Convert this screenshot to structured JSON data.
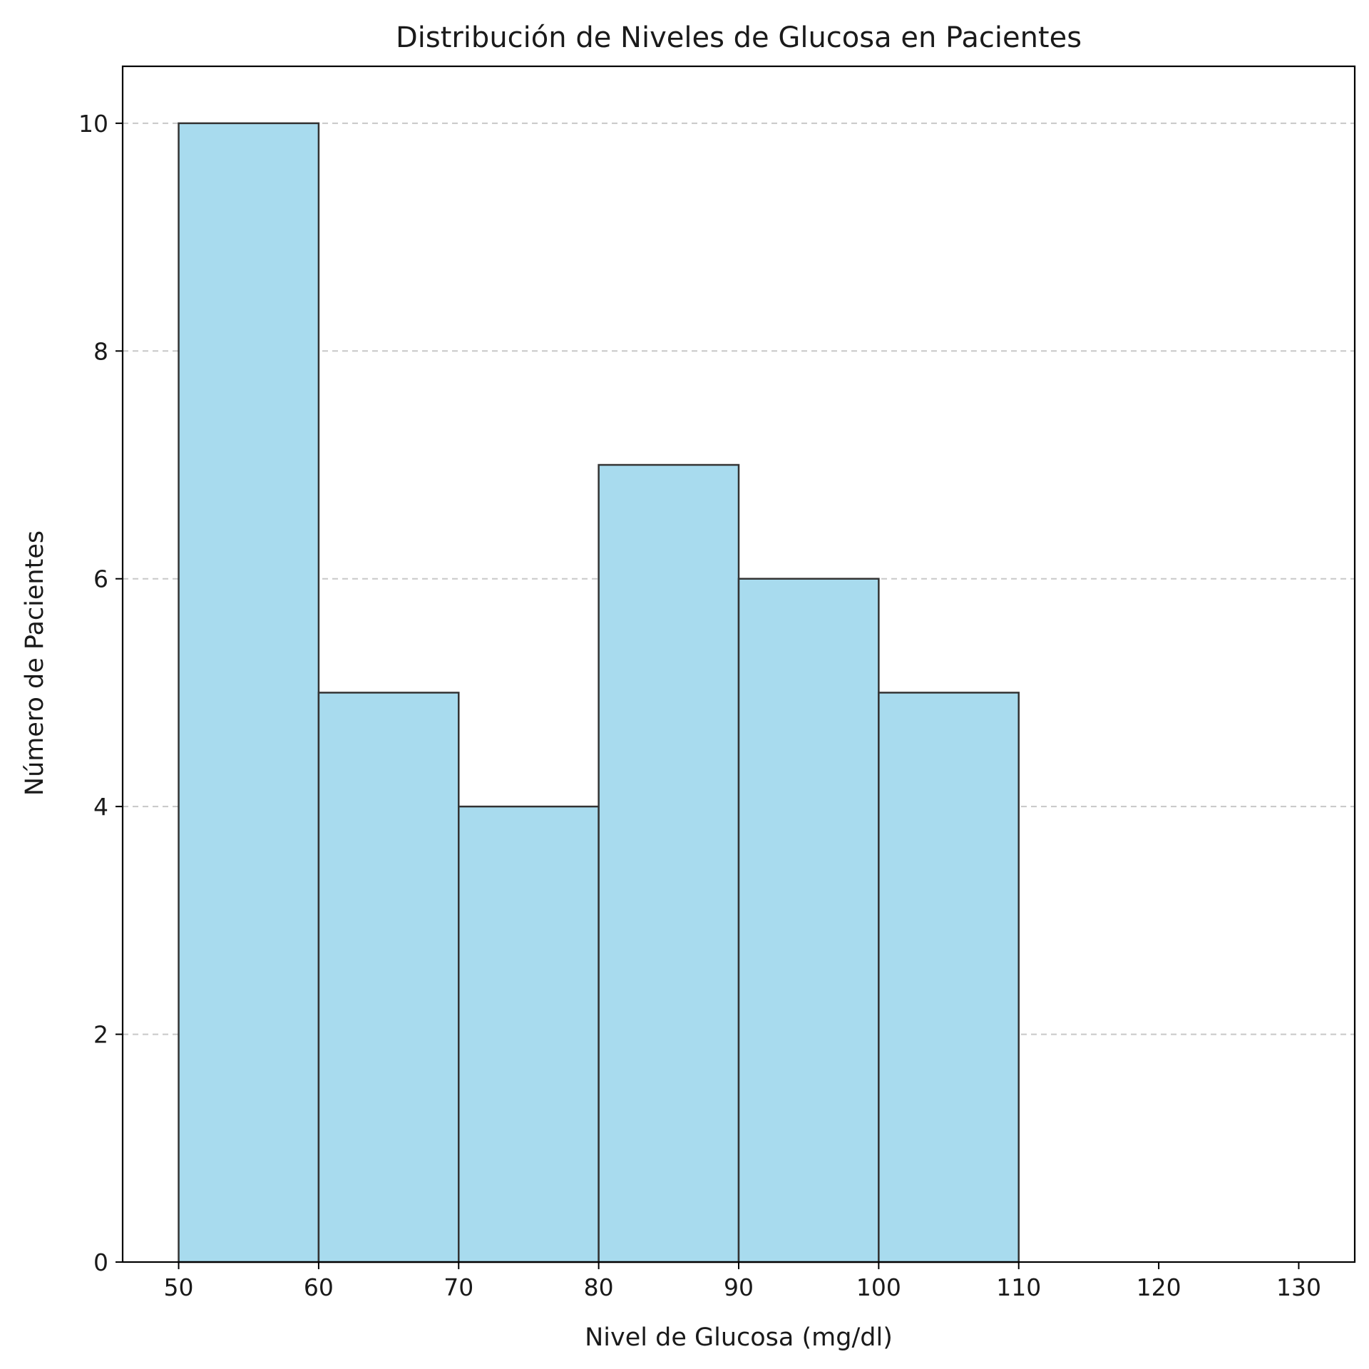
{
  "chart_data": {
    "type": "bar",
    "title": "Distribución de Niveles de Glucosa en Pacientes",
    "xlabel": "Nivel de Glucosa (mg/dl)",
    "ylabel": "Número de Pacientes",
    "bins": [
      {
        "start": 50,
        "end": 60,
        "value": 10
      },
      {
        "start": 60,
        "end": 70,
        "value": 5
      },
      {
        "start": 70,
        "end": 80,
        "value": 4
      },
      {
        "start": 80,
        "end": 90,
        "value": 7
      },
      {
        "start": 90,
        "end": 100,
        "value": 6
      },
      {
        "start": 100,
        "end": 110,
        "value": 5
      },
      {
        "start": 110,
        "end": 120,
        "value": 0
      },
      {
        "start": 120,
        "end": 130,
        "value": 0
      }
    ],
    "xticks": [
      50,
      60,
      70,
      80,
      90,
      100,
      110,
      120,
      130
    ],
    "yticks": [
      0,
      2,
      4,
      6,
      8,
      10
    ],
    "xlim": [
      46,
      134
    ],
    "ylim": [
      0,
      10.5
    ],
    "grid": "y-dashed",
    "bar_color": "#a8dbee",
    "edge_color": "#333333",
    "grid_color": "#c8c8c8"
  }
}
